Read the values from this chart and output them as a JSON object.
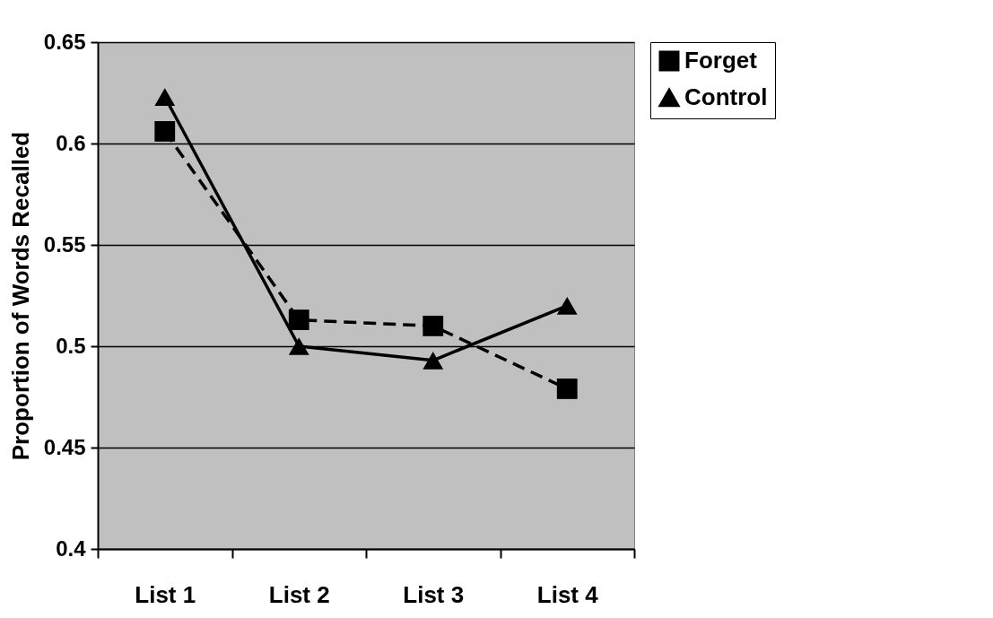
{
  "chart_data": {
    "type": "line",
    "ylabel": "Proportion of Words Recalled",
    "categories": [
      "List 1",
      "List 2",
      "List 3",
      "List 4"
    ],
    "series": [
      {
        "name": "Forget",
        "color": "#000000",
        "marker": "square",
        "line_style": "dashed",
        "values": [
          0.606,
          0.513,
          0.51,
          0.479
        ]
      },
      {
        "name": "Control",
        "color": "#000000",
        "marker": "triangle",
        "line_style": "solid",
        "values": [
          0.623,
          0.5,
          0.493,
          0.52
        ]
      }
    ],
    "ylim": [
      0.4,
      0.65
    ],
    "yticks": [
      0.4,
      0.45,
      0.5,
      0.55,
      0.6,
      0.65
    ],
    "grid": "y",
    "legend": "right"
  }
}
